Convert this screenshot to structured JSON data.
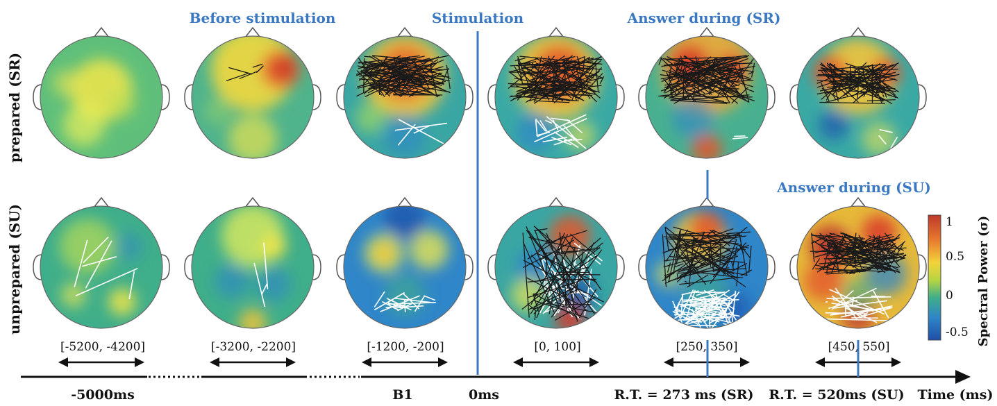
{
  "headers": {
    "before": "Before stimulation",
    "stimulation": "Stimulation",
    "answer_sr": "Answer during (SR)",
    "answer_su": "Answer during (SU)"
  },
  "rows": {
    "prepared": "prepared (SR)",
    "unprepared": "unprepared (SU)"
  },
  "windows": [
    "[-5200, -4200]",
    "[-3200, -2200]",
    "[-1200, -200]",
    "[0, 100]",
    "[250, 350]",
    "[450, 550]"
  ],
  "timeline": {
    "t1": "-5000ms",
    "t2": "B1",
    "t3": "0ms",
    "t4": "R.T. = 273 ms (SR)",
    "t5": "R.T. = 520ms (SU)",
    "axis": "Time (ms)"
  },
  "colorbar": {
    "title": "Spectral Power (σ)",
    "ticks": [
      "1",
      "0.5",
      "0",
      "-0.5"
    ],
    "colors": [
      "#c0392b",
      "#e87a2e",
      "#f3d339",
      "#b7d542",
      "#3fae8a",
      "#2f86c8",
      "#1f4ea8"
    ]
  },
  "palette": {
    "accent": "#3a78c2",
    "dark_links": "#1a1a1a",
    "light_links": "#ffffff"
  }
}
